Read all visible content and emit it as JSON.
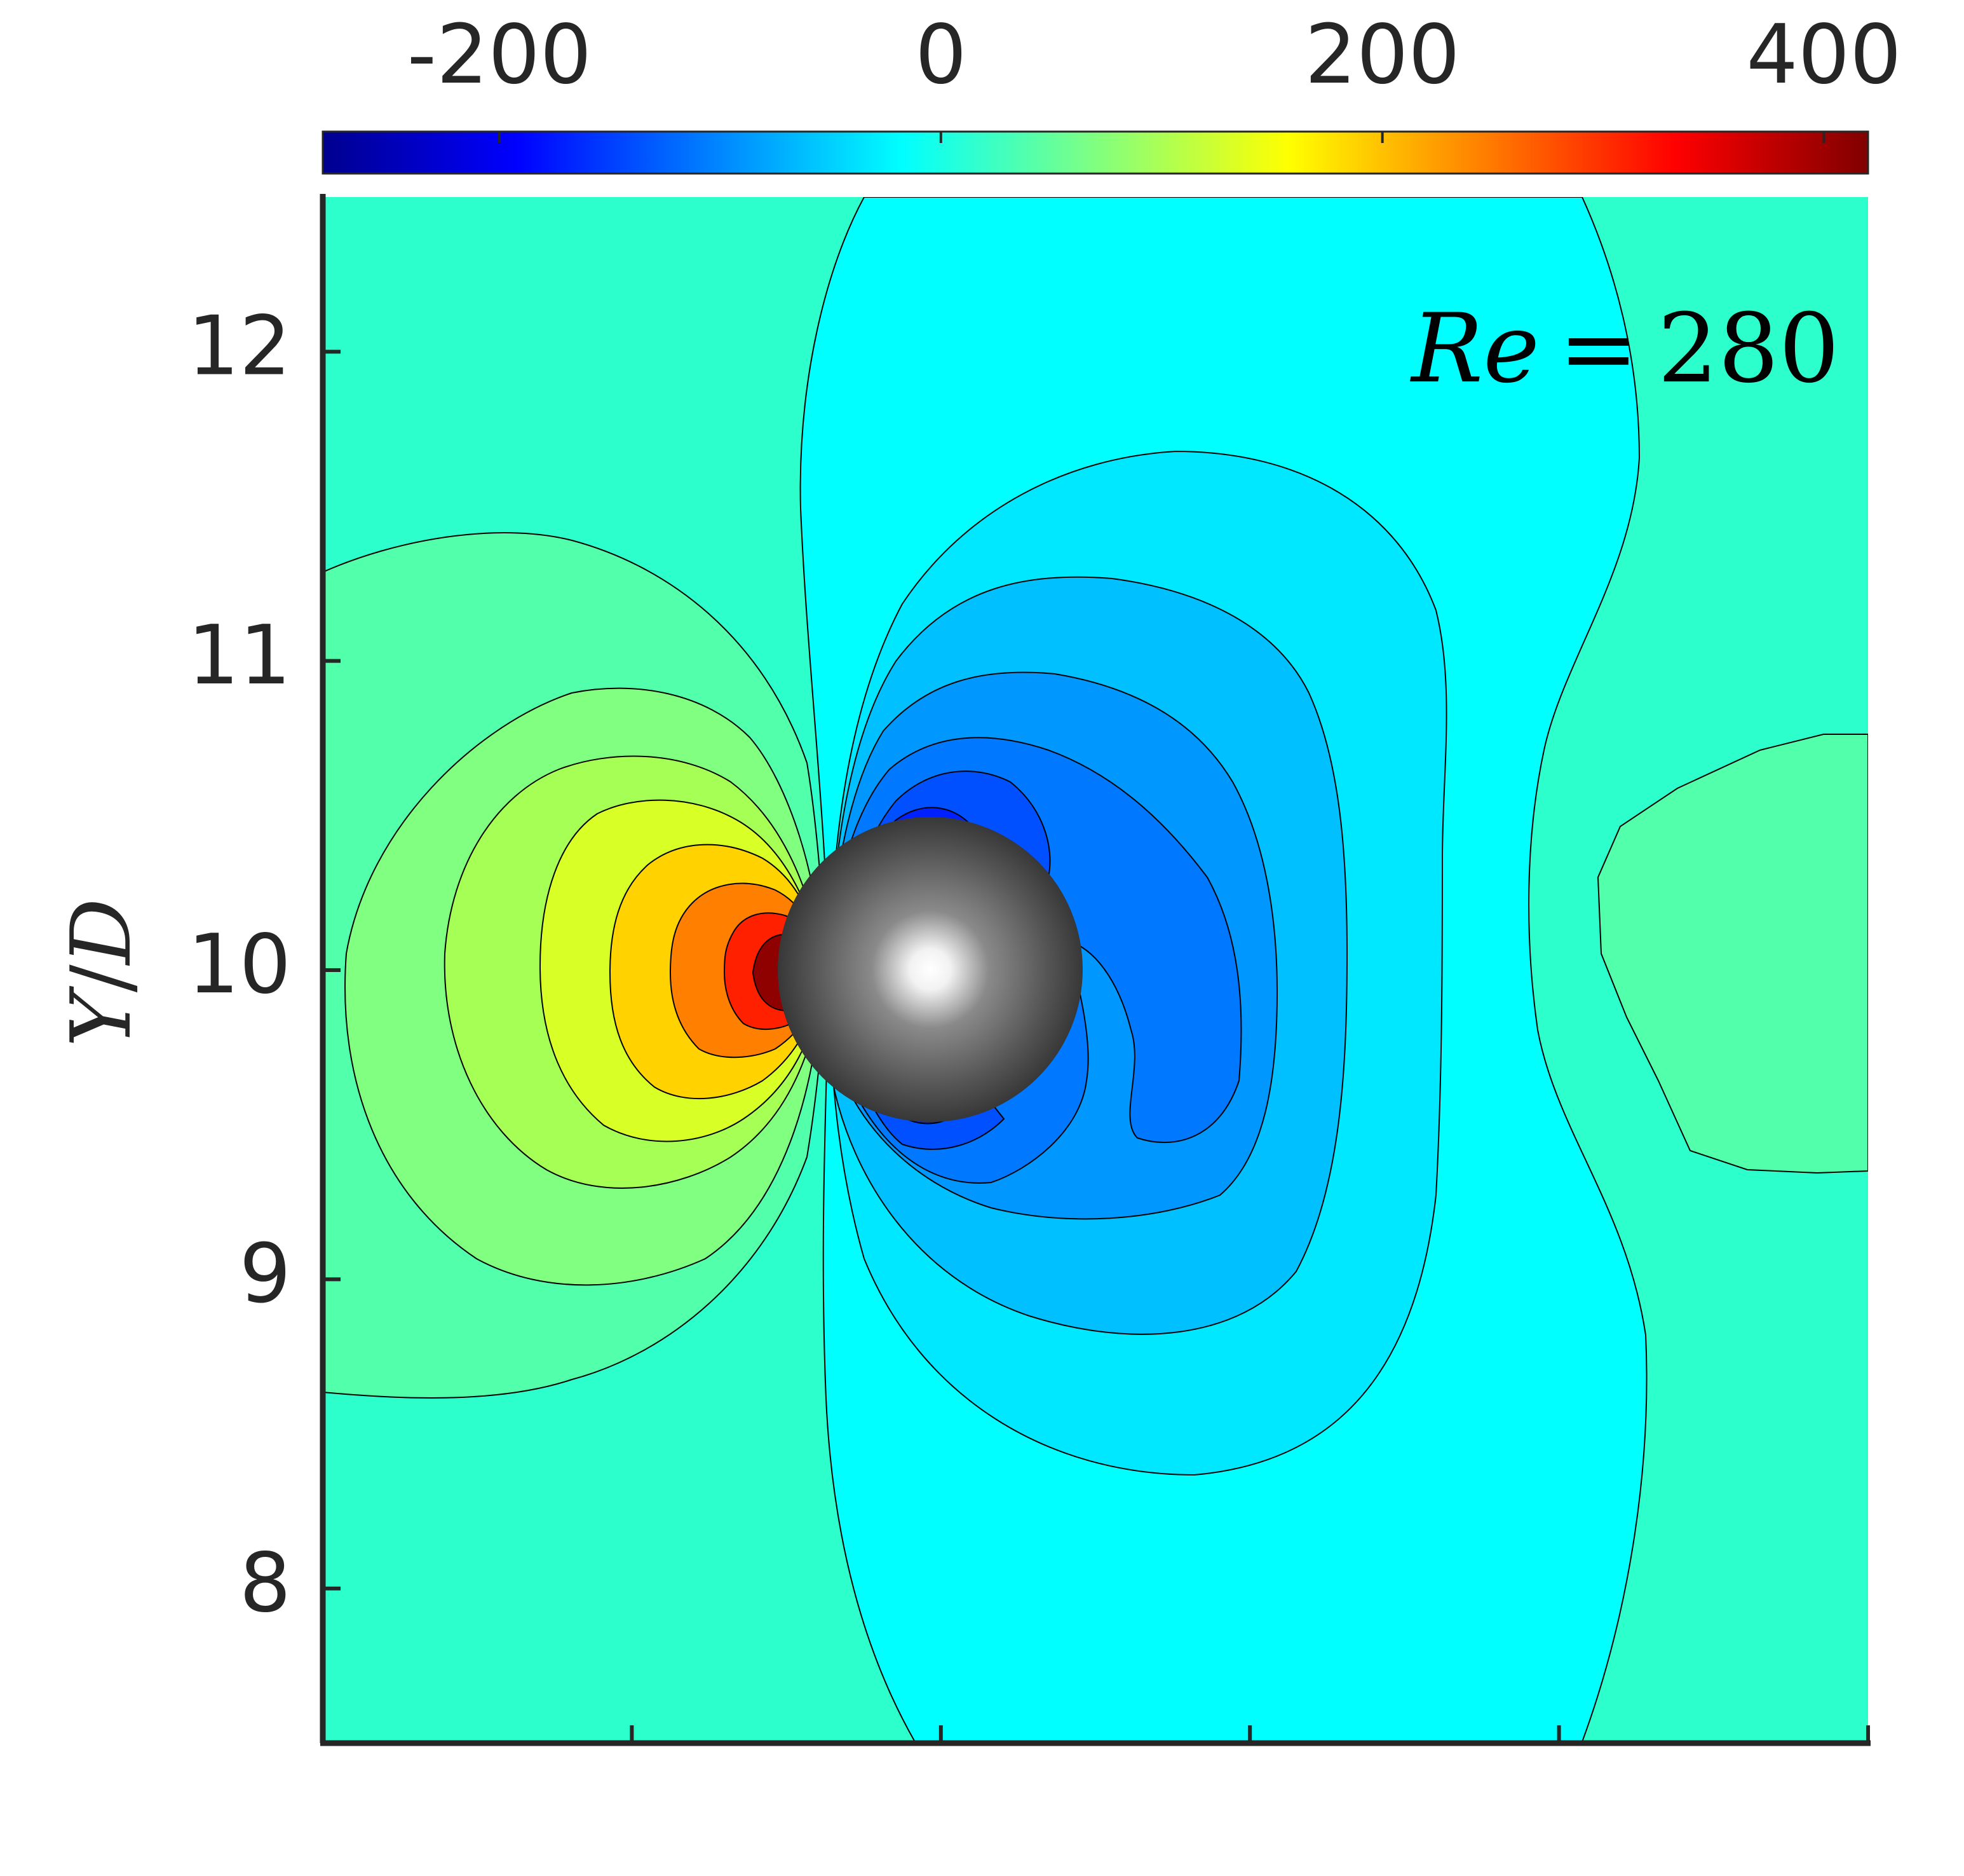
{
  "chart_data": {
    "type": "heatmap",
    "title": "",
    "xlabel": "",
    "ylabel": "Y/D",
    "ylabel_parts": {
      "y": "Y",
      "slash": "/",
      "d": "D"
    },
    "annotation": {
      "text": "Re = 280",
      "lhs": "Re",
      "eq": "=",
      "rhs": "280"
    },
    "yticks": [
      8,
      9,
      10,
      11,
      12
    ],
    "yticklabels": [
      "8",
      "9",
      "10",
      "11",
      "12"
    ],
    "ylim": [
      7.5,
      12.5
    ],
    "x_tick_count": 6,
    "colorbar": {
      "ticks": [
        -200,
        0,
        200,
        400
      ],
      "ticklabels": [
        "-200",
        "0",
        "200",
        "400"
      ],
      "range": [
        -280,
        420
      ],
      "colormap": "jet"
    },
    "field": {
      "background_value": 20,
      "center_value": 420,
      "min_value": -280,
      "far_right_region_value": 30,
      "upstream_region_value": 40,
      "sphere": {
        "center_y": 10.0,
        "diameter": 1.0
      }
    }
  },
  "colors": {
    "axes": "#262626",
    "contour_line": "#000000",
    "sphere_highlight": "#ffffff",
    "sphere_shadow": "#303030",
    "jet_stops": [
      "#00008f",
      "#0000ff",
      "#0080ff",
      "#00ffff",
      "#80ff80",
      "#ffff00",
      "#ff8000",
      "#ff0000",
      "#800000"
    ]
  }
}
